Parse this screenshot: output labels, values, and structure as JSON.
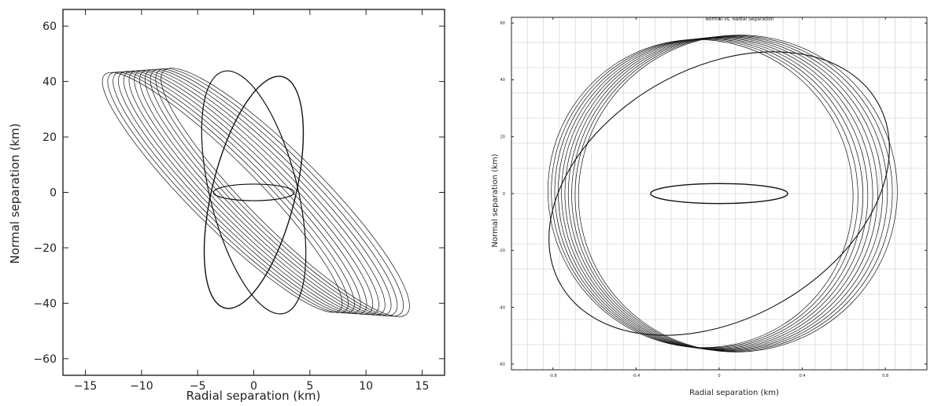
{
  "chart_data": [
    {
      "type": "line",
      "title": "",
      "xlabel": "Radial separation (km)",
      "ylabel": "Normal separation (km)",
      "xlim": [
        -17,
        17
      ],
      "ylim": [
        -66,
        66
      ],
      "xticks": [
        -15,
        -10,
        -5,
        0,
        5,
        10,
        15
      ],
      "yticks": [
        -60,
        -40,
        -20,
        0,
        20,
        40,
        60
      ],
      "x_tick_labels": [
        "−15",
        "−10",
        "−5",
        "0",
        "5",
        "10",
        "15"
      ],
      "y_tick_labels": [
        "−60",
        "−40",
        "−20",
        "0",
        "20",
        "40",
        "60"
      ],
      "grid": false,
      "line_color": "#111111",
      "series": [
        {
          "kind": "ellipse",
          "cx": 0,
          "cy": 0,
          "rx": 3.7,
          "ry": 43,
          "tilt_deg": 14,
          "stroke": 1.4
        },
        {
          "kind": "ellipse",
          "cx": 0,
          "cy": 0,
          "rx": 3.9,
          "ry": 45,
          "tilt_deg": -14,
          "stroke": 1.2
        },
        {
          "kind": "ellipse",
          "cx": 0,
          "cy": 0,
          "rx": 3.6,
          "ry": 3.0,
          "tilt_deg": 0,
          "stroke": 1.2
        },
        {
          "kind": "ellipse_band",
          "cx": 0,
          "cy": 0,
          "rx": 3.1,
          "ry": 61,
          "tilt_deg": -45,
          "count": 12,
          "offset": 0.06,
          "stroke": 0.7
        }
      ]
    },
    {
      "type": "line",
      "title": "Normal vs. Radial Separation",
      "xlabel": "Radial separation (km)",
      "ylabel": "Normal separation (km)",
      "xlim": [
        -1.0,
        1.0
      ],
      "ylim": [
        -62,
        62
      ],
      "xticks": [
        -0.8,
        -0.4,
        0,
        0.4,
        0.8
      ],
      "yticks": [
        -60,
        -40,
        -20,
        0,
        20,
        40,
        60
      ],
      "x_tick_labels": [
        "-0.8",
        "-0.4",
        "0",
        "0.4",
        "0.8"
      ],
      "y_tick_labels": [
        "-60",
        "-40",
        "-20",
        "0",
        "20",
        "40",
        "60"
      ],
      "grid": true,
      "line_color": "#111111",
      "grid_color": "#d9d9d9",
      "series": [
        {
          "kind": "ellipse",
          "cx": 0,
          "cy": 0,
          "rx": 0.33,
          "ry": 3.5,
          "tilt_deg": 0,
          "stroke": 1.4
        },
        {
          "kind": "ellipse",
          "cx": 0,
          "cy": 0,
          "rx": 0.88,
          "ry": 44,
          "tilt_deg": -30,
          "stroke": 1.1
        },
        {
          "kind": "ellipse_band",
          "cx": 0,
          "cy": 0,
          "rx": 0.75,
          "ry": 55,
          "tilt_deg": -32,
          "count": 10,
          "offset": 0.04,
          "stroke": 0.7
        }
      ]
    }
  ]
}
